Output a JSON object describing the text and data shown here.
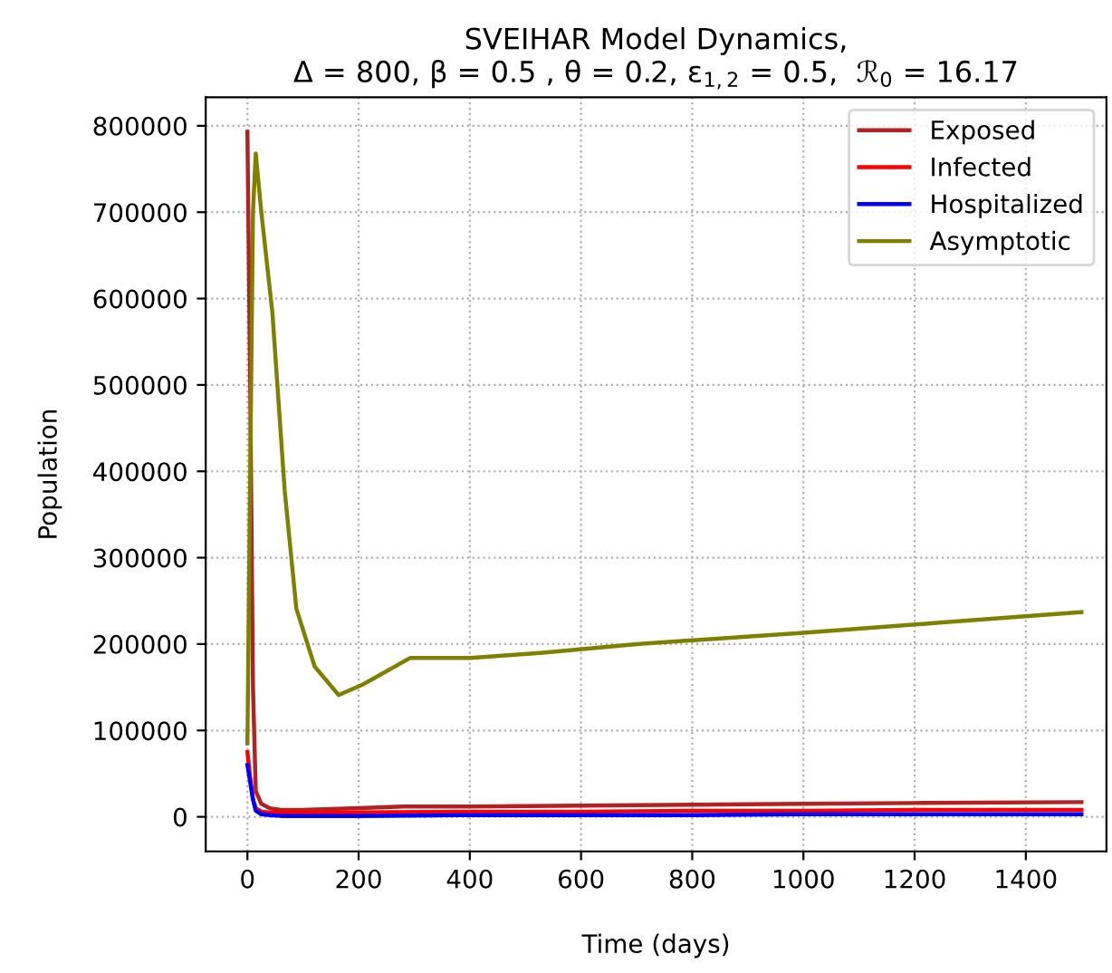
{
  "chart_data": {
    "type": "line",
    "title": "SVEIHAR Model Dynamics,\nΔ = 800, β = 0.5 , θ = 0.2, ε$_{1,2}$ = 0.5,  ℛ$_{0}$ = 16.17",
    "xlabel": "Time (days)",
    "ylabel": "Population",
    "xlim": [
      -75,
      1545
    ],
    "ylim": [
      -40000,
      833000
    ],
    "xticks": [
      0,
      200,
      400,
      600,
      800,
      1000,
      1200,
      1400
    ],
    "yticks": [
      0,
      100000,
      200000,
      300000,
      400000,
      500000,
      600000,
      700000,
      800000
    ],
    "grid": true,
    "legend": "top right",
    "series": [
      {
        "name": "Exposed",
        "color": "#b22222",
        "x": [
          0,
          5,
          10,
          15,
          25,
          40,
          60,
          100,
          200,
          280,
          400,
          600,
          800,
          1000,
          1200,
          1500
        ],
        "values": [
          793000,
          500000,
          150000,
          30000,
          15000,
          10000,
          8000,
          8000,
          10000,
          12000,
          12000,
          13000,
          14000,
          15000,
          16000,
          17000
        ]
      },
      {
        "name": "Infected",
        "color": "#ff0000",
        "x": [
          0,
          5,
          10,
          15,
          25,
          40,
          60,
          100,
          200,
          400,
          600,
          800,
          1000,
          1200,
          1500
        ],
        "values": [
          75000,
          45000,
          20000,
          10000,
          6000,
          5000,
          5000,
          5000,
          5000,
          6000,
          6000,
          7000,
          7000,
          8000,
          8000
        ]
      },
      {
        "name": "Hospitalized",
        "color": "#0000ff",
        "x": [
          0,
          5,
          10,
          15,
          25,
          40,
          60,
          100,
          200,
          400,
          600,
          800,
          1000,
          1200,
          1500
        ],
        "values": [
          60000,
          40000,
          20000,
          7000,
          3000,
          2000,
          1000,
          1000,
          1000,
          2000,
          2000,
          2000,
          3000,
          3000,
          3000
        ]
      },
      {
        "name": "Asymptotic",
        "color": "#808000",
        "x": [
          0,
          5,
          10,
          15,
          25,
          45,
          67,
          88,
          121,
          164,
          207,
          293,
          401,
          531,
          700,
          1000,
          1250,
          1500
        ],
        "values": [
          85000,
          400000,
          700000,
          768000,
          700000,
          583000,
          378000,
          241000,
          174000,
          141000,
          153000,
          184000,
          184000,
          190000,
          200000,
          213000,
          225000,
          237000
        ]
      }
    ]
  }
}
